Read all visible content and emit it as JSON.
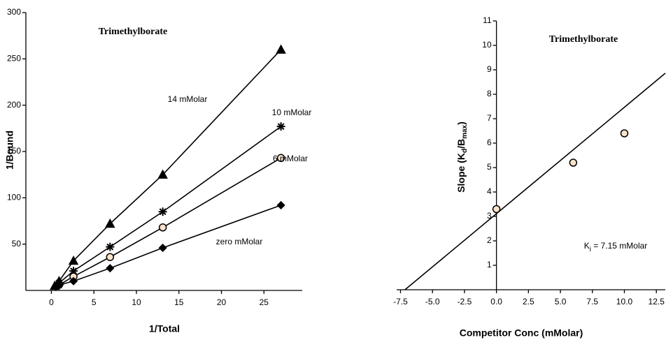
{
  "chart_data": [
    {
      "type": "line",
      "annotation": "Trimethylborate",
      "x_label": "1/Total",
      "y_label": "1/Bound",
      "xlim": [
        -3,
        29.5
      ],
      "ylim": [
        0,
        300
      ],
      "xticks": [
        0,
        5,
        10,
        15,
        20,
        25
      ],
      "yticks": [
        50,
        100,
        150,
        200,
        250,
        300
      ],
      "series": [
        {
          "name": "14 mMolar",
          "color": "#000000",
          "marker": "triangle",
          "x": [
            0.4,
            0.9,
            2.6,
            6.9,
            13.1,
            27
          ],
          "values": [
            5,
            10,
            32,
            72,
            125,
            260
          ]
        },
        {
          "name": "10 mMolar",
          "color": "#000000",
          "marker": "star",
          "x": [
            0.9,
            2.6,
            6.9,
            13.1,
            27
          ],
          "values": [
            8,
            21,
            47,
            85,
            177
          ]
        },
        {
          "name": "6 mMolar",
          "color": "#000000",
          "fill": "#fbe3cc",
          "marker": "circle",
          "x": [
            0.9,
            2.6,
            6.9,
            13.1,
            27
          ],
          "values": [
            6,
            15,
            36,
            68,
            143
          ]
        },
        {
          "name": "zero mMolar",
          "color": "#000000",
          "marker": "diamond",
          "x": [
            0.5,
            0.9,
            2.6,
            6.9,
            13.1,
            27
          ],
          "values": [
            4,
            6,
            10,
            24,
            46,
            92
          ]
        }
      ]
    },
    {
      "type": "scatter",
      "annotation": "Trimethylborate",
      "x_label": "Competitor Conc (mMolar)",
      "y_label_parts": [
        "Slope (K",
        "d",
        "/B",
        "max",
        ")"
      ],
      "note_parts": [
        "K",
        "i",
        " = 7.15 mMolar"
      ],
      "xlim": [
        -7.8,
        13.2
      ],
      "ylim": [
        0,
        11
      ],
      "xticks": [
        -7.5,
        {
          "value": -5,
          "label": "-5.0"
        },
        -2.5,
        {
          "value": 0,
          "label": "0.0"
        },
        2.5,
        {
          "value": 5,
          "label": "5.0"
        },
        7.5,
        {
          "value": 10,
          "label": "10.0"
        },
        12.5
      ],
      "yticks": [
        1,
        2,
        3,
        4,
        5,
        6,
        7,
        8,
        9,
        10,
        11
      ],
      "series": [
        {
          "color": "#000000",
          "fill": "#fbe3cc",
          "marker": "circle",
          "x": [
            0,
            6,
            10
          ],
          "values": [
            3.3,
            5.2,
            6.4
          ]
        }
      ],
      "fit_line": {
        "color": "#000000",
        "x": [
          -7.15,
          13.2
        ],
        "values": [
          0,
          8.86
        ]
      }
    }
  ]
}
